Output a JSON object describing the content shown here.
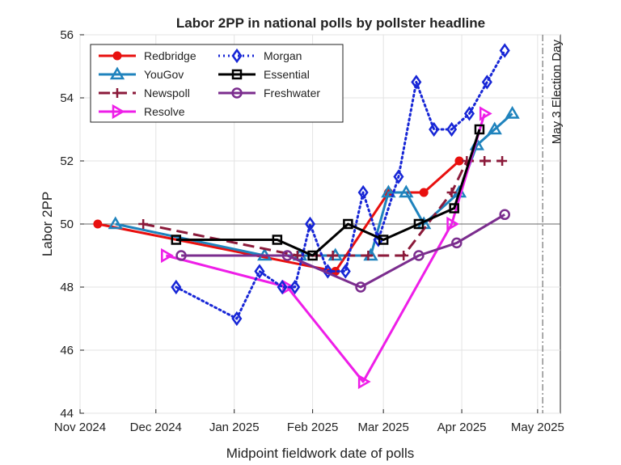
{
  "chart_data": {
    "type": "line",
    "title": "Labor 2PP in national polls by pollster headline",
    "xlabel": "Midpoint fieldwork date of polls",
    "ylabel": "Labor 2PP",
    "xlim": [
      "2024-11-01",
      "2025-05-10"
    ],
    "ylim": [
      44,
      56
    ],
    "x_ticks": [
      {
        "date": "2024-11-01",
        "label": "Nov 2024"
      },
      {
        "date": "2024-12-01",
        "label": "Dec 2024"
      },
      {
        "date": "2025-01-01",
        "label": "Jan 2025"
      },
      {
        "date": "2025-02-01",
        "label": "Feb 2025"
      },
      {
        "date": "2025-03-01",
        "label": "Mar 2025"
      },
      {
        "date": "2025-04-01",
        "label": "Apr 2025"
      },
      {
        "date": "2025-05-01",
        "label": "May 2025"
      }
    ],
    "y_ticks": [
      "44",
      "46",
      "48",
      "50",
      "52",
      "54",
      "56"
    ],
    "grid": true,
    "legend_position": "top-left",
    "reference_line": {
      "y": 50
    },
    "annotation": {
      "date": "2025-05-03",
      "label": "May 3 Election Day"
    },
    "series": [
      {
        "name": "Redbridge",
        "color": "#e8100f",
        "marker": "circle",
        "dash": "solid",
        "points": [
          [
            "2024-11-08",
            50.0
          ],
          [
            "2025-02-10",
            48.5
          ],
          [
            "2025-03-03",
            51.0
          ],
          [
            "2025-03-17",
            51.0
          ],
          [
            "2025-03-31",
            52.0
          ]
        ]
      },
      {
        "name": "YouGov",
        "color": "#1f83bd",
        "marker": "triangle-up",
        "dash": "solid",
        "points": [
          [
            "2024-11-15",
            50.0
          ],
          [
            "2025-01-13",
            49.0
          ],
          [
            "2025-01-27",
            49.0
          ],
          [
            "2025-02-10",
            49.0
          ],
          [
            "2025-02-24",
            49.0
          ],
          [
            "2025-03-03",
            51.0
          ],
          [
            "2025-03-10",
            51.0
          ],
          [
            "2025-03-17",
            50.0
          ],
          [
            "2025-03-31",
            51.0
          ],
          [
            "2025-04-07",
            52.5
          ],
          [
            "2025-04-14",
            53.0
          ],
          [
            "2025-04-21",
            53.5
          ]
        ]
      },
      {
        "name": "Newspoll",
        "color": "#8b1a3a",
        "marker": "plus",
        "dash": "dashed",
        "points": [
          [
            "2024-11-26",
            50.0
          ],
          [
            "2025-01-26",
            49.0
          ],
          [
            "2025-02-09",
            49.0
          ],
          [
            "2025-02-23",
            49.0
          ],
          [
            "2025-03-09",
            49.0
          ],
          [
            "2025-03-28",
            51.0
          ],
          [
            "2025-04-03",
            52.0
          ],
          [
            "2025-04-10",
            52.0
          ],
          [
            "2025-04-17",
            52.0
          ]
        ]
      },
      {
        "name": "Resolve",
        "color": "#ee1ee8",
        "marker": "triangle-right",
        "dash": "solid",
        "points": [
          [
            "2024-12-05",
            49.0
          ],
          [
            "2025-01-22",
            48.0
          ],
          [
            "2025-02-21",
            45.0
          ],
          [
            "2025-03-28",
            50.0
          ],
          [
            "2025-04-10",
            53.5
          ]
        ]
      },
      {
        "name": "Morgan",
        "color": "#1726d6",
        "marker": "diamond",
        "dash": "dotted",
        "points": [
          [
            "2024-12-09",
            48.0
          ],
          [
            "2025-01-02",
            47.0
          ],
          [
            "2025-01-11",
            48.5
          ],
          [
            "2025-01-20",
            48.0
          ],
          [
            "2025-01-25",
            48.0
          ],
          [
            "2025-01-31",
            50.0
          ],
          [
            "2025-02-07",
            48.5
          ],
          [
            "2025-02-14",
            48.5
          ],
          [
            "2025-02-21",
            51.0
          ],
          [
            "2025-02-27",
            49.5
          ],
          [
            "2025-03-07",
            51.5
          ],
          [
            "2025-03-14",
            54.5
          ],
          [
            "2025-03-21",
            53.0
          ],
          [
            "2025-03-28",
            53.0
          ],
          [
            "2025-04-04",
            53.5
          ],
          [
            "2025-04-11",
            54.5
          ],
          [
            "2025-04-18",
            55.5
          ]
        ]
      },
      {
        "name": "Essential",
        "color": "#000000",
        "marker": "square",
        "dash": "solid",
        "points": [
          [
            "2024-12-09",
            49.5
          ],
          [
            "2025-01-18",
            49.5
          ],
          [
            "2025-02-01",
            49.0
          ],
          [
            "2025-02-15",
            50.0
          ],
          [
            "2025-03-01",
            49.5
          ],
          [
            "2025-03-15",
            50.0
          ],
          [
            "2025-03-29",
            50.5
          ],
          [
            "2025-04-08",
            53.0
          ]
        ]
      },
      {
        "name": "Freshwater",
        "color": "#7b2d8e",
        "marker": "circle-open",
        "dash": "solid",
        "points": [
          [
            "2024-12-11",
            49.0
          ],
          [
            "2025-01-22",
            49.0
          ],
          [
            "2025-02-20",
            48.0
          ],
          [
            "2025-03-15",
            49.0
          ],
          [
            "2025-03-30",
            49.4
          ],
          [
            "2025-04-18",
            50.3
          ]
        ]
      }
    ],
    "legend_order": [
      "Redbridge",
      "Morgan",
      "YouGov",
      "Essential",
      "Newspoll",
      "Freshwater",
      "Resolve"
    ]
  }
}
